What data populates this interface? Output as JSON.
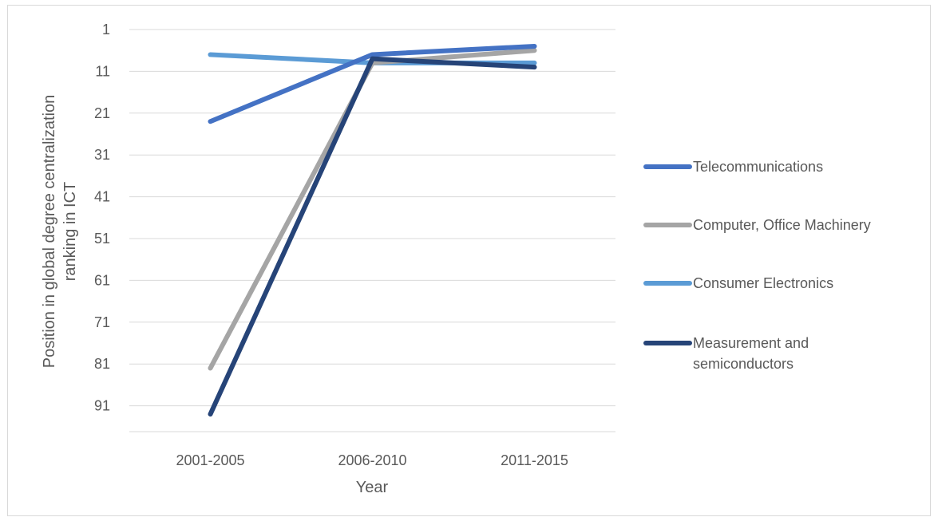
{
  "chart_data": {
    "type": "line",
    "categories": [
      "2001-2005",
      "2006-2010",
      "2011-2015"
    ],
    "xlabel": "Year",
    "ylabel_lines": [
      "Position in global degree centralization",
      "ranking in ICT"
    ],
    "yticks": [
      1,
      11,
      21,
      31,
      41,
      51,
      61,
      71,
      81,
      91
    ],
    "ylim": [
      1,
      96
    ],
    "y_reversed": true,
    "grid": "horizontal",
    "legend_position": "right",
    "series": [
      {
        "name": "Telecommunications",
        "values": [
          23,
          7,
          5
        ],
        "color": "#4472c4"
      },
      {
        "name": "Computer, Office Machinery",
        "values": [
          82,
          9,
          6
        ],
        "color": "#a5a5a5"
      },
      {
        "name": "Consumer Electronics",
        "values": [
          7,
          9,
          9
        ],
        "color": "#5b9bd5"
      },
      {
        "name": "Measurement and semiconductors",
        "values": [
          93,
          8,
          10
        ],
        "color": "#264478",
        "legend_lines": [
          "Measurement and",
          "semiconductors"
        ]
      }
    ]
  }
}
